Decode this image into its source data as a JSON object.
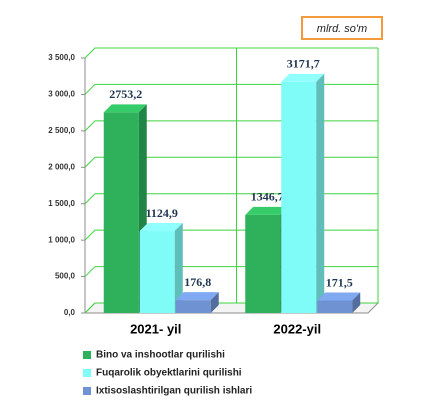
{
  "chart_data": {
    "type": "bar3d",
    "unit": "mlrd. so'm",
    "categories": [
      "2021- yil",
      "2022-yil"
    ],
    "series": [
      {
        "name": "Bino va inshootlar qurilishi",
        "color": "#2fb15c",
        "values": [
          2753.2,
          1346.7
        ],
        "value_labels": [
          "2753,2",
          "1346,7"
        ]
      },
      {
        "name": "Fuqarolik obyektlarini qurilishi",
        "color": "#7ffcf8",
        "values": [
          1124.9,
          3171.7
        ],
        "value_labels": [
          "1124,9",
          "3171,7"
        ]
      },
      {
        "name": "Ixtisoslashtirilgan qurilish ishlari",
        "color": "#6f93d2",
        "values": [
          176.8,
          171.5
        ],
        "value_labels": [
          "176,8",
          "171,5"
        ]
      }
    ],
    "ylim": [
      0,
      3500
    ],
    "yticks": [
      {
        "value": 0,
        "label": "0,0"
      },
      {
        "value": 500,
        "label": "500,0"
      },
      {
        "value": 1000,
        "label": "1 000,0"
      },
      {
        "value": 1500,
        "label": "1 500,0"
      },
      {
        "value": 2000,
        "label": "2 000,0"
      },
      {
        "value": 2500,
        "label": "2 500,0"
      },
      {
        "value": 3000,
        "label": "3 000,0"
      },
      {
        "value": 3500,
        "label": "3 500,0"
      }
    ],
    "grid": true,
    "legend": "bottom"
  }
}
